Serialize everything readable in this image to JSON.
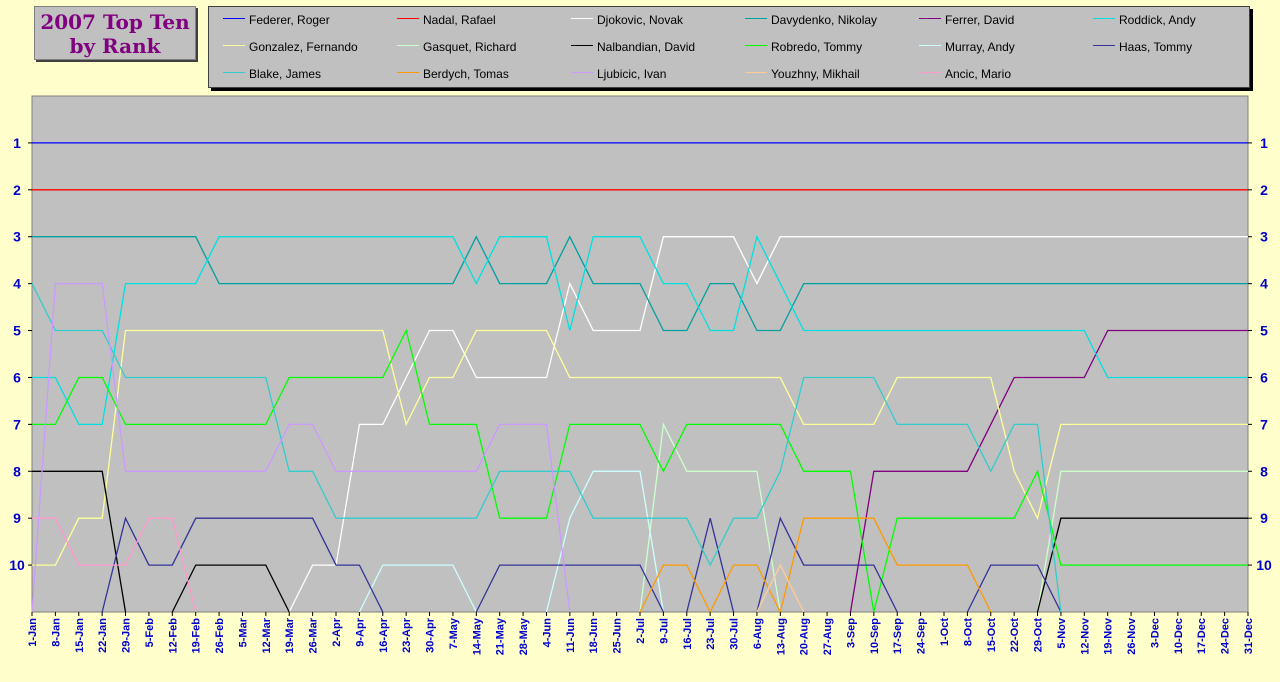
{
  "title_lines": [
    "2007 Top Ten",
    "by Rank"
  ],
  "colors": {
    "page_bg": "#FFFFCC",
    "plot_bg": "#C0C0C0",
    "title_text": "#800080",
    "axis_text": "#0000CC"
  },
  "chart_data": {
    "type": "line",
    "x": [
      "1-Jan",
      "8-Jan",
      "15-Jan",
      "22-Jan",
      "29-Jan",
      "5-Feb",
      "12-Feb",
      "19-Feb",
      "26-Feb",
      "5-Mar",
      "12-Mar",
      "19-Mar",
      "26-Mar",
      "2-Apr",
      "9-Apr",
      "16-Apr",
      "23-Apr",
      "30-Apr",
      "7-May",
      "14-May",
      "21-May",
      "28-May",
      "4-Jun",
      "11-Jun",
      "18-Jun",
      "25-Jun",
      "2-Jul",
      "9-Jul",
      "16-Jul",
      "23-Jul",
      "30-Jul",
      "6-Aug",
      "13-Aug",
      "20-Aug",
      "27-Aug",
      "3-Sep",
      "10-Sep",
      "17-Sep",
      "24-Sep",
      "1-Oct",
      "8-Oct",
      "15-Oct",
      "22-Oct",
      "29-Oct",
      "5-Nov",
      "12-Nov",
      "19-Nov",
      "26-Nov",
      "3-Dec",
      "10-Dec",
      "17-Dec",
      "24-Dec",
      "31-Dec"
    ],
    "y_ticks": [
      1,
      2,
      3,
      4,
      5,
      6,
      7,
      8,
      9,
      10
    ],
    "ylim": [
      0,
      11
    ],
    "y_inverted": true,
    "grid": false,
    "legend_position": "top",
    "series": [
      {
        "name": "Federer, Roger",
        "color": "#0000FF",
        "values": [
          1,
          1,
          1,
          1,
          1,
          1,
          1,
          1,
          1,
          1,
          1,
          1,
          1,
          1,
          1,
          1,
          1,
          1,
          1,
          1,
          1,
          1,
          1,
          1,
          1,
          1,
          1,
          1,
          1,
          1,
          1,
          1,
          1,
          1,
          1,
          1,
          1,
          1,
          1,
          1,
          1,
          1,
          1,
          1,
          1,
          1,
          1,
          1,
          1,
          1,
          1,
          1,
          1
        ]
      },
      {
        "name": "Nadal, Rafael",
        "color": "#FF0000",
        "values": [
          2,
          2,
          2,
          2,
          2,
          2,
          2,
          2,
          2,
          2,
          2,
          2,
          2,
          2,
          2,
          2,
          2,
          2,
          2,
          2,
          2,
          2,
          2,
          2,
          2,
          2,
          2,
          2,
          2,
          2,
          2,
          2,
          2,
          2,
          2,
          2,
          2,
          2,
          2,
          2,
          2,
          2,
          2,
          2,
          2,
          2,
          2,
          2,
          2,
          2,
          2,
          2,
          2
        ]
      },
      {
        "name": "Djokovic, Novak",
        "color": "#FFFFFF",
        "values": [
          null,
          null,
          null,
          null,
          null,
          null,
          null,
          null,
          null,
          null,
          null,
          null,
          10,
          10,
          7,
          7,
          6,
          5,
          5,
          6,
          6,
          6,
          6,
          4,
          5,
          5,
          5,
          3,
          3,
          3,
          3,
          4,
          3,
          3,
          3,
          3,
          3,
          3,
          3,
          3,
          3,
          3,
          3,
          3,
          3,
          3,
          3,
          3,
          3,
          3,
          3,
          3,
          3
        ]
      },
      {
        "name": "Davydenko, Nikolay",
        "color": "#00A0A0",
        "values": [
          3,
          3,
          3,
          3,
          3,
          3,
          3,
          3,
          4,
          4,
          4,
          4,
          4,
          4,
          4,
          4,
          4,
          4,
          4,
          3,
          4,
          4,
          4,
          3,
          4,
          4,
          4,
          5,
          5,
          4,
          4,
          5,
          5,
          4,
          4,
          4,
          4,
          4,
          4,
          4,
          4,
          4,
          4,
          4,
          4,
          4,
          4,
          4,
          4,
          4,
          4,
          4,
          4
        ]
      },
      {
        "name": "Ferrer, David",
        "color": "#800080",
        "values": [
          null,
          null,
          null,
          null,
          null,
          null,
          null,
          null,
          null,
          null,
          null,
          null,
          null,
          null,
          null,
          null,
          null,
          null,
          null,
          null,
          null,
          null,
          null,
          null,
          null,
          null,
          null,
          null,
          null,
          null,
          null,
          null,
          null,
          null,
          null,
          null,
          8,
          8,
          8,
          8,
          8,
          7,
          6,
          6,
          6,
          6,
          5,
          5,
          5,
          5,
          5,
          5,
          5
        ]
      },
      {
        "name": "Roddick, Andy",
        "color": "#00E0E0",
        "values": [
          6,
          6,
          7,
          7,
          4,
          4,
          4,
          4,
          3,
          3,
          3,
          3,
          3,
          3,
          3,
          3,
          3,
          3,
          3,
          4,
          3,
          3,
          3,
          5,
          3,
          3,
          3,
          4,
          4,
          5,
          5,
          3,
          4,
          5,
          5,
          5,
          5,
          5,
          5,
          5,
          5,
          5,
          5,
          5,
          5,
          5,
          6,
          6,
          6,
          6,
          6,
          6,
          6
        ]
      },
      {
        "name": "Gonzalez, Fernando",
        "color": "#FFFF99",
        "values": [
          10,
          10,
          9,
          9,
          5,
          5,
          5,
          5,
          5,
          5,
          5,
          5,
          5,
          5,
          5,
          5,
          7,
          6,
          6,
          5,
          5,
          5,
          5,
          6,
          6,
          6,
          6,
          6,
          6,
          6,
          6,
          6,
          6,
          7,
          7,
          7,
          7,
          6,
          6,
          6,
          6,
          6,
          8,
          9,
          7,
          7,
          7,
          7,
          7,
          7,
          7,
          7,
          7
        ]
      },
      {
        "name": "Gasquet, Richard",
        "color": "#CCFFCC",
        "values": [
          null,
          null,
          null,
          null,
          null,
          null,
          null,
          null,
          null,
          null,
          null,
          null,
          null,
          null,
          null,
          null,
          null,
          null,
          null,
          null,
          null,
          null,
          null,
          null,
          null,
          null,
          null,
          7,
          8,
          8,
          8,
          8,
          null,
          null,
          null,
          null,
          null,
          null,
          null,
          null,
          null,
          null,
          null,
          null,
          8,
          8,
          8,
          8,
          8,
          8,
          8,
          8,
          8
        ]
      },
      {
        "name": "Nalbandian, David",
        "color": "#000000",
        "values": [
          8,
          8,
          8,
          8,
          null,
          null,
          null,
          10,
          10,
          10,
          10,
          null,
          null,
          null,
          null,
          null,
          null,
          null,
          null,
          null,
          null,
          null,
          null,
          null,
          null,
          null,
          null,
          null,
          null,
          null,
          null,
          null,
          null,
          null,
          null,
          null,
          null,
          null,
          null,
          null,
          null,
          null,
          null,
          null,
          9,
          9,
          9,
          9,
          9,
          9,
          9,
          9,
          9
        ]
      },
      {
        "name": "Robredo, Tommy",
        "color": "#00FF00",
        "values": [
          7,
          7,
          6,
          6,
          7,
          7,
          7,
          7,
          7,
          7,
          7,
          6,
          6,
          6,
          6,
          6,
          5,
          7,
          7,
          7,
          9,
          9,
          9,
          7,
          7,
          7,
          7,
          8,
          7,
          7,
          7,
          7,
          7,
          8,
          8,
          8,
          null,
          9,
          9,
          9,
          9,
          9,
          9,
          8,
          10,
          10,
          10,
          10,
          10,
          10,
          10,
          10,
          10
        ]
      },
      {
        "name": "Murray, Andy",
        "color": "#CCFFFF",
        "values": [
          null,
          null,
          null,
          null,
          null,
          null,
          null,
          null,
          null,
          null,
          null,
          null,
          null,
          null,
          null,
          10,
          10,
          10,
          10,
          null,
          null,
          null,
          null,
          9,
          8,
          8,
          8,
          null,
          null,
          null,
          null,
          null,
          null,
          null,
          null,
          null,
          null,
          null,
          null,
          null,
          null,
          null,
          null,
          null,
          null,
          null,
          null,
          null,
          null,
          null,
          null,
          null,
          null
        ]
      },
      {
        "name": "Haas, Tommy",
        "color": "#333399",
        "values": [
          null,
          null,
          null,
          null,
          9,
          10,
          10,
          9,
          9,
          9,
          9,
          9,
          9,
          10,
          10,
          null,
          null,
          null,
          null,
          null,
          10,
          10,
          10,
          10,
          10,
          10,
          10,
          null,
          null,
          9,
          null,
          null,
          9,
          10,
          10,
          10,
          10,
          null,
          null,
          null,
          null,
          10,
          10,
          10,
          null,
          null,
          null,
          null,
          null,
          null,
          null,
          null,
          null
        ]
      },
      {
        "name": "Blake, James",
        "color": "#33CCCC",
        "values": [
          4,
          5,
          5,
          5,
          6,
          6,
          6,
          6,
          6,
          6,
          6,
          8,
          8,
          9,
          9,
          9,
          9,
          9,
          9,
          9,
          8,
          8,
          8,
          8,
          9,
          9,
          9,
          9,
          9,
          10,
          9,
          9,
          8,
          6,
          6,
          6,
          6,
          7,
          7,
          7,
          7,
          8,
          7,
          7,
          null,
          null,
          null,
          null,
          null,
          null,
          null,
          null,
          null
        ]
      },
      {
        "name": "Berdych, Tomas",
        "color": "#FF9900",
        "values": [
          null,
          null,
          null,
          null,
          null,
          null,
          null,
          null,
          null,
          null,
          null,
          null,
          null,
          null,
          null,
          null,
          null,
          null,
          null,
          null,
          null,
          null,
          null,
          null,
          null,
          null,
          null,
          10,
          10,
          null,
          10,
          10,
          null,
          9,
          9,
          9,
          9,
          10,
          10,
          10,
          10,
          null,
          null,
          null,
          null,
          null,
          null,
          null,
          null,
          null,
          null,
          null,
          null
        ]
      },
      {
        "name": "Ljubicic, Ivan",
        "color": "#CC99FF",
        "values": [
          null,
          4,
          4,
          4,
          8,
          8,
          8,
          8,
          8,
          8,
          8,
          7,
          7,
          8,
          8,
          8,
          8,
          8,
          8,
          8,
          7,
          7,
          7,
          null,
          null,
          null,
          null,
          null,
          null,
          null,
          null,
          null,
          null,
          null,
          null,
          null,
          null,
          null,
          null,
          null,
          null,
          null,
          null,
          null,
          null,
          null,
          null,
          null,
          null,
          null,
          null,
          null,
          null
        ]
      },
      {
        "name": "Youzhny, Mikhail",
        "color": "#FFCC99",
        "values": [
          null,
          null,
          null,
          null,
          null,
          null,
          null,
          null,
          null,
          null,
          null,
          null,
          null,
          null,
          null,
          null,
          null,
          null,
          null,
          null,
          null,
          null,
          null,
          null,
          null,
          null,
          null,
          null,
          null,
          null,
          null,
          null,
          10,
          null,
          null,
          null,
          null,
          null,
          null,
          null,
          null,
          null,
          null,
          null,
          null,
          null,
          null,
          null,
          null,
          null,
          null,
          null,
          null
        ]
      },
      {
        "name": "Ancic, Mario",
        "color": "#FF99CC",
        "values": [
          9,
          9,
          10,
          10,
          10,
          9,
          9,
          null,
          null,
          null,
          null,
          null,
          null,
          null,
          null,
          null,
          null,
          null,
          null,
          null,
          null,
          null,
          null,
          null,
          null,
          null,
          null,
          null,
          null,
          null,
          null,
          null,
          null,
          null,
          null,
          null,
          null,
          null,
          null,
          null,
          null,
          null,
          null,
          null,
          null,
          null,
          null,
          null,
          null,
          null,
          null,
          null,
          null
        ]
      }
    ]
  }
}
